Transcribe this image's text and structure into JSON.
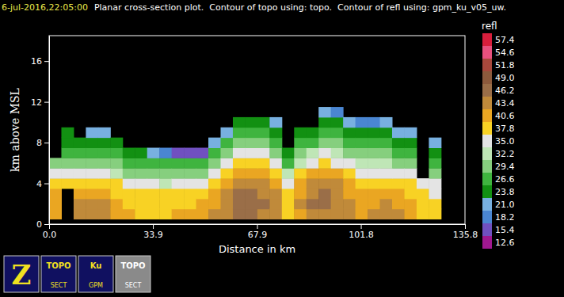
{
  "chart_data": {
    "type": "heatmap",
    "date": "6-jul-2016,22:05:00",
    "title": "Planar cross-section plot.  Contour of topo using: topo.  Contour of refl using: gpm_ku_v05_uw.",
    "x_label": "Distance in km",
    "y_label": "km above MSL",
    "xlim": [
      0,
      135.8
    ],
    "xticks": [
      {
        "value": 0,
        "label": "0.0"
      },
      33.9,
      67.9,
      101.8,
      135.8
    ],
    "ylim": [
      0,
      18.5
    ],
    "yticks": [
      0,
      4,
      8,
      12,
      16
    ],
    "x": [
      2,
      6,
      10,
      14,
      18,
      22,
      26,
      30,
      34,
      38,
      42,
      46,
      50,
      54,
      58,
      62,
      66,
      70,
      74,
      78,
      82,
      86,
      90,
      94,
      98,
      102,
      106,
      110,
      114,
      118,
      122,
      126
    ],
    "y": [
      1,
      2,
      3,
      4,
      5,
      6,
      7,
      8,
      9,
      10,
      11
    ],
    "z": [
      [
        41,
        42,
        41,
        39,
        36,
        30,
        null,
        null,
        null,
        null,
        null
      ],
      [
        null,
        null,
        null,
        39,
        35,
        31,
        28,
        26,
        24,
        null,
        null
      ],
      [
        45,
        45,
        42,
        39,
        35,
        31,
        28,
        25,
        null,
        null,
        null
      ],
      [
        45,
        45,
        43,
        40,
        36,
        32,
        29,
        26,
        23,
        null,
        null
      ],
      [
        44,
        44,
        42,
        39,
        35,
        31,
        28,
        25,
        22,
        null,
        null
      ],
      [
        43,
        42,
        40,
        38,
        34,
        30,
        27,
        24,
        null,
        null,
        null
      ],
      [
        41,
        40,
        39,
        36,
        32,
        28,
        25,
        null,
        null,
        null,
        null
      ],
      [
        40,
        40,
        38,
        35,
        31,
        27,
        24,
        null,
        null,
        null,
        null
      ],
      [
        40,
        39,
        38,
        35,
        31,
        28,
        22,
        null,
        null,
        null,
        null
      ],
      [
        40,
        39,
        38,
        34,
        31,
        27,
        19,
        null,
        null,
        null,
        null
      ],
      [
        41,
        40,
        38,
        35,
        31,
        27,
        17,
        null,
        null,
        null,
        null
      ],
      [
        41,
        40,
        38,
        35,
        32,
        28,
        16,
        null,
        null,
        null,
        null
      ],
      [
        42,
        41,
        39,
        36,
        32,
        28,
        17,
        null,
        null,
        null,
        null
      ],
      [
        44,
        43,
        42,
        39,
        35,
        31,
        27,
        22,
        null,
        null,
        null
      ],
      [
        46,
        46,
        45,
        43,
        39,
        35,
        31,
        27,
        23,
        null,
        null
      ],
      [
        47,
        48,
        47,
        46,
        42,
        39,
        35,
        31,
        28,
        24,
        null
      ],
      [
        47,
        48,
        47,
        46,
        43,
        40,
        36,
        32,
        28,
        25,
        null
      ],
      [
        46,
        47,
        46,
        45,
        42,
        39,
        35,
        31,
        28,
        24,
        null
      ],
      [
        45,
        45,
        44,
        42,
        39,
        35,
        32,
        29,
        26,
        22,
        null
      ],
      [
        40,
        40,
        39,
        37,
        33,
        29,
        25,
        null,
        null,
        null,
        null
      ],
      [
        43,
        44,
        43,
        41,
        38,
        34,
        30,
        27,
        24,
        null,
        null
      ],
      [
        46,
        47,
        46,
        45,
        42,
        37,
        33,
        29,
        25,
        null,
        null
      ],
      [
        46,
        47,
        47,
        46,
        43,
        39,
        35,
        31,
        28,
        25,
        22
      ],
      [
        45,
        46,
        46,
        45,
        41,
        37,
        34,
        30,
        27,
        24,
        20
      ],
      [
        44,
        44,
        43,
        41,
        38,
        35,
        31,
        28,
        25,
        21,
        null
      ],
      [
        42,
        42,
        41,
        39,
        36,
        33,
        30,
        27,
        24,
        20,
        null
      ],
      [
        44,
        43,
        41,
        39,
        36,
        33,
        30,
        27,
        24,
        19,
        null
      ],
      [
        45,
        44,
        42,
        40,
        37,
        34,
        31,
        28,
        25,
        22,
        null
      ],
      [
        44,
        43,
        41,
        39,
        36,
        32,
        29,
        26,
        23,
        null,
        null
      ],
      [
        42,
        41,
        40,
        38,
        35,
        31,
        28,
        25,
        22,
        null,
        null
      ],
      [
        40,
        39,
        38,
        35,
        null,
        null,
        null,
        null,
        null,
        null,
        null
      ],
      [
        38,
        38,
        37,
        35,
        32,
        29,
        26,
        23,
        null,
        null,
        null
      ]
    ],
    "colorbar": {
      "title": "refl",
      "levels": [
        57.4,
        54.6,
        51.8,
        {
          "value": 49,
          "label": "49.0"
        },
        46.2,
        43.4,
        40.6,
        37.8,
        {
          "value": 35,
          "label": "35.0"
        },
        32.2,
        29.4,
        26.6,
        23.8,
        {
          "value": 21,
          "label": "21.0"
        },
        18.2,
        15.4,
        12.6
      ],
      "colors": [
        "#d81e3c",
        "#e8507e",
        "#a8483c",
        "#8c5a3c",
        "#9a6e48",
        "#c08a3a",
        "#eaa622",
        "#f8d224",
        "#e4e4e4",
        "#bfe6b6",
        "#86cf7e",
        "#3fb43f",
        "#129012",
        "#78b0e0",
        "#4a86d2",
        "#7050c0",
        "#a01890"
      ]
    }
  },
  "toolbar": [
    {
      "label": "Z"
    },
    {
      "label": "TOPO",
      "sub": "SECT"
    },
    {
      "label": "Ku",
      "sub": "GPM"
    },
    {
      "label": "TOPO",
      "sub": "SECT"
    }
  ]
}
